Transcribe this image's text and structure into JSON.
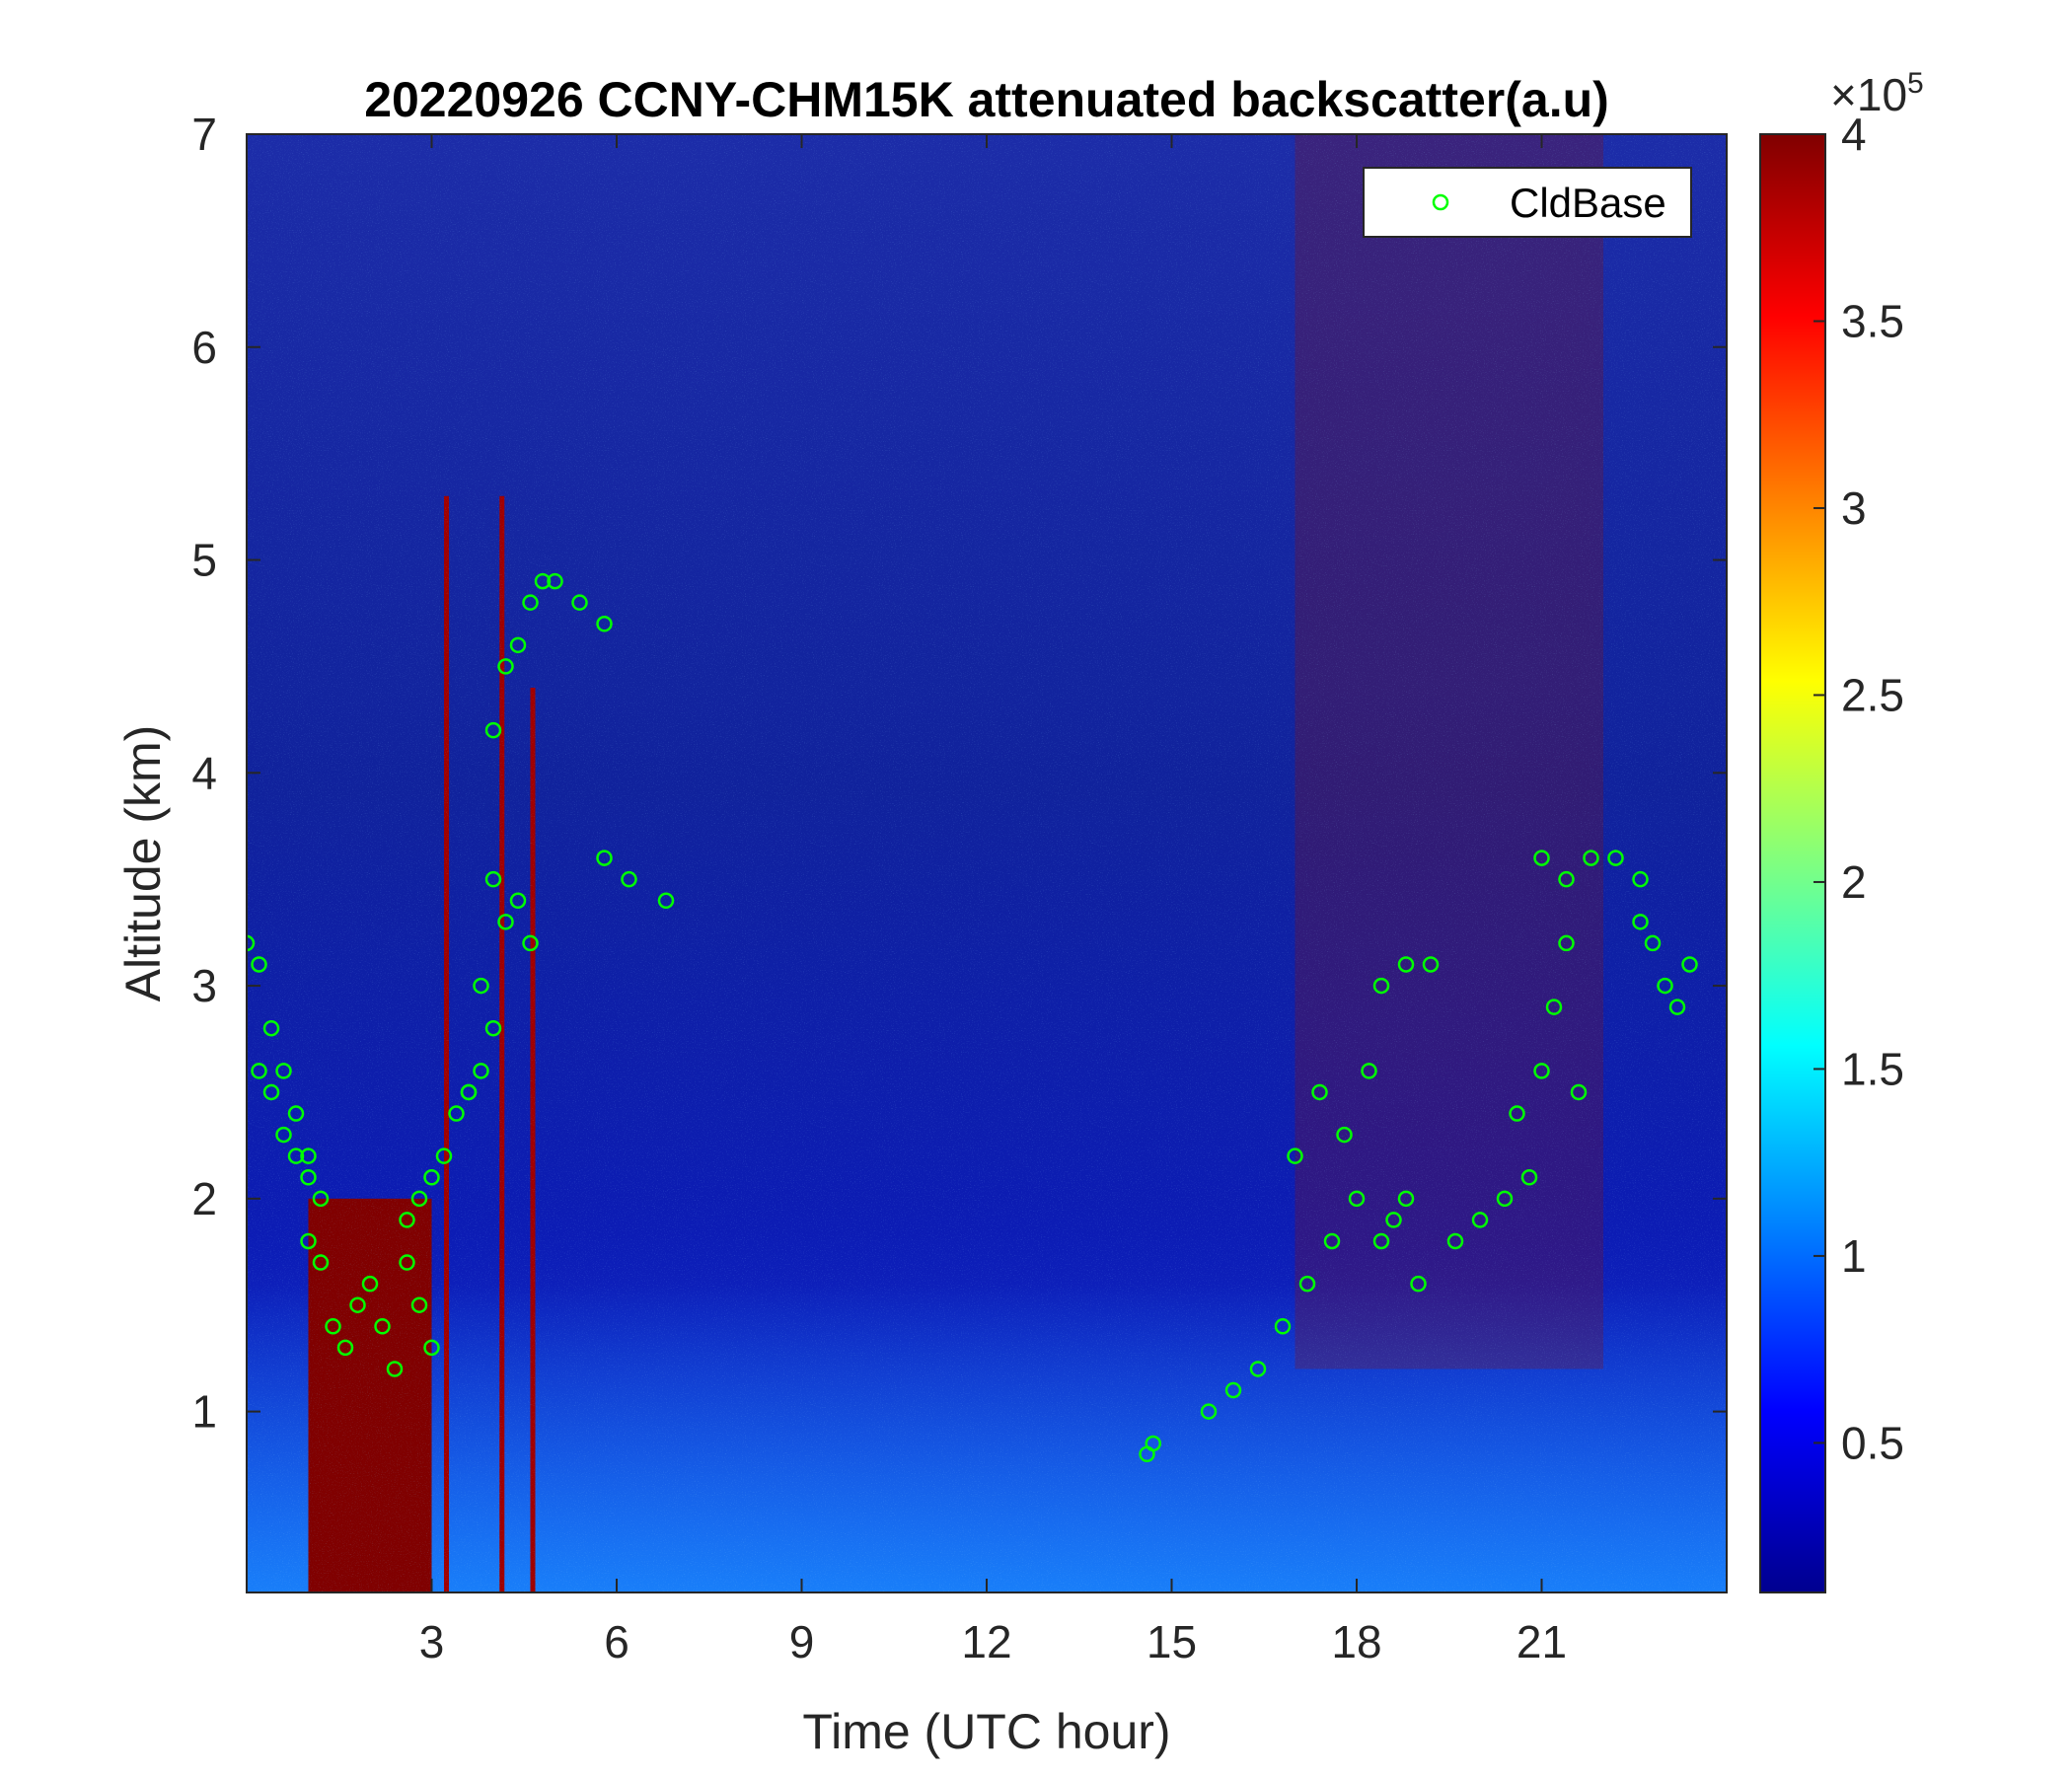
{
  "chart_data": {
    "type": "heatmap",
    "title": "20220926 CCNY-CHM15K attenuated backscatter(a.u)",
    "xlabel": "Time (UTC hour)",
    "ylabel": "Altitude (km)",
    "xlim": [
      0,
      24
    ],
    "ylim": [
      0.15,
      7
    ],
    "xticks": [
      3,
      6,
      9,
      12,
      15,
      18,
      21
    ],
    "xtick_labels": [
      "3",
      "6",
      "9",
      "12",
      "15",
      "18",
      "21"
    ],
    "yticks": [
      1,
      2,
      3,
      4,
      5,
      6,
      7
    ],
    "ytick_labels": [
      "1",
      "2",
      "3",
      "4",
      "5",
      "6",
      "7"
    ],
    "colorbar": {
      "colormap": "jet",
      "range": [
        10000,
        400000
      ],
      "ticks": [
        0.5,
        1,
        1.5,
        2,
        2.5,
        3,
        3.5,
        4
      ],
      "tick_labels": [
        "0.5",
        "1",
        "1.5",
        "2",
        "2.5",
        "3",
        "3.5",
        "4"
      ],
      "exponent_label": "×10",
      "exponent_power": "5"
    },
    "legend": {
      "placement": "top-right",
      "entries": [
        {
          "label": "CldBase",
          "marker": "circle",
          "color": "#00ff00"
        }
      ]
    },
    "cloud_base_segments": [
      {
        "t": [
          0.0,
          0.2,
          0.4,
          0.6,
          0.8,
          1.0,
          1.2
        ],
        "alt": [
          3.2,
          3.1,
          2.8,
          2.6,
          2.4,
          2.2,
          2.0
        ]
      },
      {
        "t": [
          0.2,
          0.4,
          0.6,
          0.8,
          1.0
        ],
        "alt": [
          2.6,
          2.5,
          2.3,
          2.2,
          2.1
        ]
      },
      {
        "t": [
          1.0,
          1.2,
          1.4,
          1.6,
          1.8,
          2.0,
          2.2,
          2.4,
          2.6,
          2.8,
          3.0
        ],
        "alt": [
          1.8,
          1.7,
          1.4,
          1.3,
          1.5,
          1.6,
          1.4,
          1.2,
          1.7,
          1.5,
          1.3
        ]
      },
      {
        "t": [
          2.6,
          2.8,
          3.0,
          3.2,
          3.4,
          3.6,
          3.8,
          4.0
        ],
        "alt": [
          1.9,
          2.0,
          2.1,
          2.2,
          2.4,
          2.5,
          2.6,
          2.8
        ]
      },
      {
        "t": [
          3.6,
          3.8,
          4.0,
          4.2,
          4.4,
          4.6
        ],
        "alt": [
          2.5,
          3.0,
          3.5,
          3.3,
          3.4,
          3.2
        ]
      },
      {
        "t": [
          4.0,
          4.2,
          4.4,
          4.6,
          4.8,
          5.0,
          5.4,
          5.8
        ],
        "alt": [
          4.2,
          4.5,
          4.6,
          4.8,
          4.9,
          4.9,
          4.8,
          4.7
        ]
      },
      {
        "t": [
          5.8,
          6.2,
          6.8
        ],
        "alt": [
          3.6,
          3.5,
          3.4
        ]
      },
      {
        "t": [
          14.6,
          14.7
        ],
        "alt": [
          0.8,
          0.85
        ]
      },
      {
        "t": [
          15.6,
          16.0,
          16.4,
          16.8,
          17.2,
          17.6,
          18.0,
          18.4,
          18.8
        ],
        "alt": [
          1.0,
          1.1,
          1.2,
          1.4,
          1.6,
          1.8,
          2.0,
          1.8,
          2.0
        ]
      },
      {
        "t": [
          17.0,
          17.4,
          17.8,
          18.2,
          18.6
        ],
        "alt": [
          2.2,
          2.5,
          2.3,
          2.6,
          1.9
        ]
      },
      {
        "t": [
          18.4,
          18.8,
          19.2
        ],
        "alt": [
          3.0,
          3.1,
          3.1
        ]
      },
      {
        "t": [
          19.0,
          19.6,
          20.0,
          20.4,
          20.8
        ],
        "alt": [
          1.6,
          1.8,
          1.9,
          2.0,
          2.1
        ]
      },
      {
        "t": [
          20.6,
          21.0,
          21.2,
          21.4,
          21.6
        ],
        "alt": [
          2.4,
          2.6,
          2.9,
          3.2,
          2.5
        ]
      },
      {
        "t": [
          21.0,
          21.4,
          21.8,
          22.2,
          22.6
        ],
        "alt": [
          3.6,
          3.5,
          3.6,
          3.6,
          3.5
        ]
      },
      {
        "t": [
          22.6,
          22.8,
          23.0,
          23.2,
          23.4
        ],
        "alt": [
          3.3,
          3.2,
          3.0,
          2.9,
          3.1
        ]
      }
    ]
  }
}
